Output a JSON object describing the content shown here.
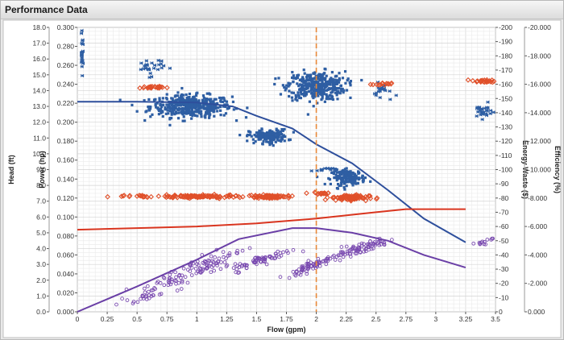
{
  "window": {
    "title": "Performance Data"
  },
  "chart_data": {
    "type": "scatter",
    "xlabel": "Flow (gpm)",
    "xlim": [
      0,
      3.5
    ],
    "xticks": [
      "0",
      "0.25",
      "0.5",
      "0.75",
      "1",
      "1.25",
      "1.5",
      "1.75",
      "2",
      "2.25",
      "2.5",
      "2.75",
      "3",
      "3.25",
      "3.5"
    ],
    "grid": true,
    "marker_x": 2.0,
    "y_axes": [
      {
        "label": "Head (ft)",
        "range": [
          0,
          18
        ],
        "ticks": [
          "0.0",
          "1.0",
          "2.0",
          "3.0",
          "4.0",
          "5.0",
          "6.0",
          "7.0",
          "8.0",
          "9.0",
          "10.0",
          "11.0",
          "12.0",
          "13.0",
          "14.0",
          "15.0",
          "16.0",
          "17.0",
          "18.0"
        ]
      },
      {
        "label": "Power (hp)",
        "range": [
          0,
          0.3
        ],
        "ticks": [
          "0.000",
          "0.020",
          "0.040",
          "0.060",
          "0.080",
          "0.100",
          "0.120",
          "0.140",
          "0.160",
          "0.180",
          "0.200",
          "0.220",
          "0.240",
          "0.260",
          "0.280",
          "0.300"
        ]
      },
      {
        "label": "Energy Waste ($)",
        "range": [
          0,
          200
        ],
        "ticks": [
          "0",
          "10",
          "20",
          "30",
          "40",
          "50",
          "60",
          "70",
          "80",
          "90",
          "100",
          "110",
          "120",
          "130",
          "140",
          "150",
          "160",
          "170",
          "180",
          "190",
          "200"
        ]
      },
      {
        "label": "Efficiency (%)",
        "range": [
          0,
          20
        ],
        "ticks": [
          "0.000",
          "2.000",
          "4.000",
          "6.000",
          "8.000",
          "10.000",
          "12.000",
          "14.000",
          "16.000",
          "18.000",
          "20.000"
        ]
      }
    ],
    "y_axes_tick_prefix": [
      "",
      "",
      "-",
      "-"
    ],
    "curves": [
      {
        "axis": "Head (ft)",
        "color": "#2e4f9c",
        "x": [
          0,
          0.5,
          1.0,
          1.3,
          1.5,
          1.8,
          2.0,
          2.3,
          2.6,
          2.9,
          3.25
        ],
        "y": [
          13.3,
          13.3,
          13.25,
          13.0,
          12.4,
          11.6,
          10.6,
          9.4,
          7.7,
          5.9,
          4.4
        ]
      },
      {
        "axis": "Power (hp)",
        "color": "#d9351f",
        "x": [
          0,
          0.5,
          1.0,
          1.5,
          2.0,
          2.5,
          2.75,
          3.25
        ],
        "y": [
          0.0866,
          0.0883,
          0.09,
          0.0933,
          0.0983,
          0.105,
          0.1083,
          0.1083
        ]
      },
      {
        "axis": "Head (ft)",
        "color": "#6a3fa6",
        "x": [
          0,
          0.5,
          1.0,
          1.35,
          1.8,
          2.0,
          2.3,
          2.6,
          2.9,
          3.25
        ],
        "y": [
          0.0,
          1.6,
          3.3,
          4.6,
          5.3,
          5.3,
          5.0,
          4.5,
          3.6,
          2.8
        ]
      }
    ],
    "scatter_clusters": [
      {
        "series": "head",
        "color": "#2e5ea3",
        "marker": "square",
        "x": 0.95,
        "y": 13.0,
        "sx": 0.17,
        "sy": 0.35,
        "n": 450
      },
      {
        "series": "head",
        "color": "#2e5ea3",
        "marker": "square",
        "x": 2.0,
        "y": 14.3,
        "sx": 0.12,
        "sy": 0.45,
        "n": 380
      },
      {
        "series": "head",
        "color": "#2e5ea3",
        "marker": "square",
        "x": 1.6,
        "y": 11.1,
        "sx": 0.08,
        "sy": 0.22,
        "n": 170
      },
      {
        "series": "head",
        "color": "#2e5ea3",
        "marker": "square",
        "x": 2.27,
        "y": 8.5,
        "sx": 0.07,
        "sy": 0.24,
        "n": 150
      },
      {
        "series": "head",
        "color": "#2e5ea3",
        "marker": "flag",
        "x": 0.6,
        "y": 15.5,
        "sx": 0.06,
        "sy": 0.28,
        "n": 28
      },
      {
        "series": "head",
        "color": "#2e5ea3",
        "marker": "flag",
        "x": 2.05,
        "y": 9.0,
        "sx": 0.05,
        "sy": 0.07,
        "n": 14
      },
      {
        "series": "head",
        "color": "#2e5ea3",
        "marker": "flag",
        "x": 2.55,
        "y": 13.9,
        "sx": 0.04,
        "sy": 0.28,
        "n": 20
      },
      {
        "series": "head",
        "color": "#2e5ea3",
        "marker": "flag",
        "x": 3.38,
        "y": 12.7,
        "sx": 0.04,
        "sy": 0.22,
        "n": 28
      },
      {
        "series": "head",
        "color": "#2e5ea3",
        "marker": "flag",
        "x": 0.03,
        "y": 16.3,
        "sx": 0.005,
        "sy": 0.55,
        "n": 24
      },
      {
        "series": "power",
        "color": "#e0502a",
        "marker": "diamond",
        "x": 1.0,
        "y": 0.1215,
        "sx": 0.17,
        "sy": 0.0008,
        "n": 110
      },
      {
        "series": "power",
        "color": "#e0502a",
        "marker": "diamond",
        "x": 1.6,
        "y": 0.1215,
        "sx": 0.09,
        "sy": 0.0008,
        "n": 70
      },
      {
        "series": "power",
        "color": "#e0502a",
        "marker": "diamond",
        "x": 2.28,
        "y": 0.1205,
        "sx": 0.08,
        "sy": 0.0015,
        "n": 80
      },
      {
        "series": "power",
        "color": "#e0502a",
        "marker": "diamond",
        "x": 0.62,
        "y": 0.2366,
        "sx": 0.05,
        "sy": 0.0006,
        "n": 25
      },
      {
        "series": "power",
        "color": "#e0502a",
        "marker": "diamond",
        "x": 2.55,
        "y": 0.24,
        "sx": 0.04,
        "sy": 0.0006,
        "n": 14
      },
      {
        "series": "power",
        "color": "#e0502a",
        "marker": "diamond",
        "x": 3.4,
        "y": 0.2433,
        "sx": 0.05,
        "sy": 0.0008,
        "n": 25
      },
      {
        "series": "power",
        "color": "#e0502a",
        "marker": "diamond",
        "x": 0.45,
        "y": 0.122,
        "sx": 0.12,
        "sy": 0.0005,
        "n": 12
      },
      {
        "series": "power",
        "color": "#e0502a",
        "marker": "diamond",
        "x": 2.05,
        "y": 0.125,
        "sx": 0.07,
        "sy": 0.0005,
        "n": 16
      },
      {
        "series": "efficiency",
        "color": "#7a4bb0",
        "marker": "circle",
        "x": 0.95,
        "y": 2.55,
        "sx": 0.22,
        "sy": 0.35,
        "n": 120,
        "slope": 3.3
      },
      {
        "series": "efficiency",
        "color": "#7a4bb0",
        "marker": "circle",
        "x": 1.55,
        "y": 3.3,
        "sx": 0.12,
        "sy": 0.15,
        "n": 70,
        "slope": 2.5
      },
      {
        "series": "efficiency",
        "color": "#7a4bb0",
        "marker": "circle",
        "x": 2.0,
        "y": 3.05,
        "sx": 0.13,
        "sy": 0.15,
        "n": 80,
        "slope": 3.0
      },
      {
        "series": "efficiency",
        "color": "#7a4bb0",
        "marker": "circle",
        "x": 2.38,
        "y": 4.05,
        "sx": 0.12,
        "sy": 0.18,
        "n": 70,
        "slope": 2.0
      },
      {
        "series": "efficiency",
        "color": "#7a4bb0",
        "marker": "circle",
        "x": 3.4,
        "y": 4.4,
        "sx": 0.04,
        "sy": 0.12,
        "n": 14,
        "slope": 2.0
      },
      {
        "series": "efficiency",
        "color": "#7a4bb0",
        "marker": "circle",
        "x": 0.55,
        "y": 0.9,
        "sx": 0.08,
        "sy": 0.08,
        "n": 14,
        "slope": 1.5
      }
    ]
  }
}
